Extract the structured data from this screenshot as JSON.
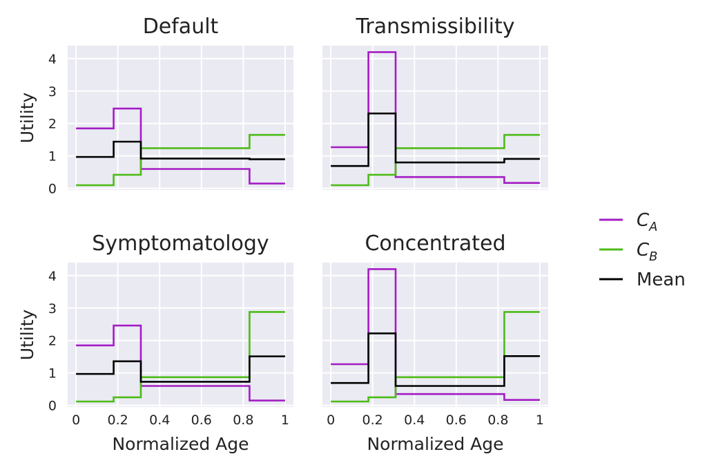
{
  "chart_data": [
    {
      "type": "line",
      "title": "Default",
      "ylabel": "Utility",
      "xlabel": "",
      "xlim": [
        -0.04,
        1.04
      ],
      "ylim": [
        -0.05,
        4.4
      ],
      "xticks": [
        "0",
        "0.2",
        "0.4",
        "0.6",
        "0.8",
        "1"
      ],
      "yticks": [
        "0",
        "1",
        "2",
        "3",
        "4"
      ],
      "show_xtick_labels": false,
      "show_ytick_labels": true,
      "grid": true,
      "series": [
        {
          "name": "C_A",
          "color": "#a31cc4",
          "x": [
            0,
            0.18,
            0.18,
            0.31,
            0.31,
            0.83,
            0.83,
            1
          ],
          "y": [
            1.85,
            1.85,
            2.46,
            2.46,
            0.6,
            0.6,
            0.15,
            0.15
          ]
        },
        {
          "name": "C_B",
          "color": "#4cbb17",
          "x": [
            0,
            0.18,
            0.18,
            0.31,
            0.31,
            0.83,
            0.83,
            1
          ],
          "y": [
            0.1,
            0.1,
            0.42,
            0.42,
            1.24,
            1.24,
            1.65,
            1.65
          ]
        },
        {
          "name": "Mean",
          "color": "#000000",
          "x": [
            0,
            0.18,
            0.18,
            0.31,
            0.31,
            0.83,
            0.83,
            1
          ],
          "y": [
            0.97,
            0.97,
            1.44,
            1.44,
            0.92,
            0.92,
            0.9,
            0.9
          ]
        }
      ]
    },
    {
      "type": "line",
      "title": "Transmissibility",
      "ylabel": "",
      "xlabel": "",
      "xlim": [
        -0.04,
        1.04
      ],
      "ylim": [
        -0.05,
        4.4
      ],
      "xticks": [
        "0",
        "0.2",
        "0.4",
        "0.6",
        "0.8",
        "1"
      ],
      "yticks": [
        "0",
        "1",
        "2",
        "3",
        "4"
      ],
      "show_xtick_labels": false,
      "show_ytick_labels": false,
      "grid": true,
      "series": [
        {
          "name": "C_A",
          "color": "#a31cc4",
          "x": [
            0,
            0.18,
            0.18,
            0.31,
            0.31,
            0.83,
            0.83,
            1
          ],
          "y": [
            1.27,
            1.27,
            4.2,
            4.2,
            0.35,
            0.35,
            0.17,
            0.17
          ]
        },
        {
          "name": "C_B",
          "color": "#4cbb17",
          "x": [
            0,
            0.18,
            0.18,
            0.31,
            0.31,
            0.83,
            0.83,
            1
          ],
          "y": [
            0.1,
            0.1,
            0.42,
            0.42,
            1.24,
            1.24,
            1.65,
            1.65
          ]
        },
        {
          "name": "Mean",
          "color": "#000000",
          "x": [
            0,
            0.18,
            0.18,
            0.31,
            0.31,
            0.83,
            0.83,
            1
          ],
          "y": [
            0.69,
            0.69,
            2.31,
            2.31,
            0.8,
            0.8,
            0.91,
            0.91
          ]
        }
      ]
    },
    {
      "type": "line",
      "title": "Symptomatology",
      "ylabel": "Utility",
      "xlabel": "Normalized Age",
      "xlim": [
        -0.04,
        1.04
      ],
      "ylim": [
        -0.05,
        4.4
      ],
      "xticks": [
        "0",
        "0.2",
        "0.4",
        "0.6",
        "0.8",
        "1"
      ],
      "yticks": [
        "0",
        "1",
        "2",
        "3",
        "4"
      ],
      "show_xtick_labels": true,
      "show_ytick_labels": true,
      "grid": true,
      "series": [
        {
          "name": "C_A",
          "color": "#a31cc4",
          "x": [
            0,
            0.18,
            0.18,
            0.31,
            0.31,
            0.83,
            0.83,
            1
          ],
          "y": [
            1.85,
            1.85,
            2.46,
            2.46,
            0.6,
            0.6,
            0.15,
            0.15
          ]
        },
        {
          "name": "C_B",
          "color": "#4cbb17",
          "x": [
            0,
            0.18,
            0.18,
            0.31,
            0.31,
            0.83,
            0.83,
            1
          ],
          "y": [
            0.12,
            0.12,
            0.25,
            0.25,
            0.87,
            0.87,
            2.88,
            2.88
          ]
        },
        {
          "name": "Mean",
          "color": "#000000",
          "x": [
            0,
            0.18,
            0.18,
            0.31,
            0.31,
            0.83,
            0.83,
            1
          ],
          "y": [
            0.97,
            0.97,
            1.36,
            1.36,
            0.73,
            0.73,
            1.51,
            1.51
          ]
        }
      ]
    },
    {
      "type": "line",
      "title": "Concentrated",
      "ylabel": "",
      "xlabel": "Normalized Age",
      "xlim": [
        -0.04,
        1.04
      ],
      "ylim": [
        -0.05,
        4.4
      ],
      "xticks": [
        "0",
        "0.2",
        "0.4",
        "0.6",
        "0.8",
        "1"
      ],
      "yticks": [
        "0",
        "1",
        "2",
        "3",
        "4"
      ],
      "show_xtick_labels": true,
      "show_ytick_labels": false,
      "grid": true,
      "series": [
        {
          "name": "C_A",
          "color": "#a31cc4",
          "x": [
            0,
            0.18,
            0.18,
            0.31,
            0.31,
            0.83,
            0.83,
            1
          ],
          "y": [
            1.27,
            1.27,
            4.2,
            4.2,
            0.35,
            0.35,
            0.17,
            0.17
          ]
        },
        {
          "name": "C_B",
          "color": "#4cbb17",
          "x": [
            0,
            0.18,
            0.18,
            0.31,
            0.31,
            0.83,
            0.83,
            1
          ],
          "y": [
            0.12,
            0.12,
            0.25,
            0.25,
            0.87,
            0.87,
            2.88,
            2.88
          ]
        },
        {
          "name": "Mean",
          "color": "#000000",
          "x": [
            0,
            0.18,
            0.18,
            0.31,
            0.31,
            0.83,
            0.83,
            1
          ],
          "y": [
            0.69,
            0.69,
            2.22,
            2.22,
            0.6,
            0.6,
            1.52,
            1.52
          ]
        }
      ]
    }
  ],
  "legend": {
    "placement": "right",
    "entries": [
      {
        "main": "C",
        "sub": "A",
        "color": "#a31cc4"
      },
      {
        "main": "C",
        "sub": "B",
        "color": "#4cbb17"
      },
      {
        "main": "Mean",
        "sub": "",
        "color": "#000000"
      }
    ]
  }
}
